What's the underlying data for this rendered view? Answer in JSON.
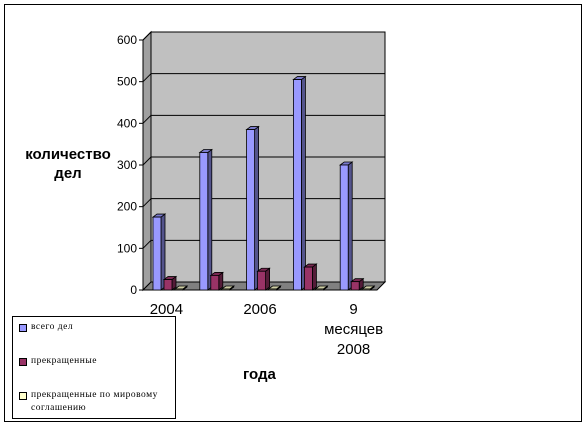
{
  "chart_data": {
    "type": "bar",
    "categories": [
      "2004",
      "",
      "2006",
      "",
      "9 месяцев 2008"
    ],
    "category_lines": [
      [
        "2004"
      ],
      [
        ""
      ],
      [
        "2006"
      ],
      [
        ""
      ],
      [
        "9",
        "месяцев",
        "2008"
      ]
    ],
    "series": [
      {
        "name": "всего дел",
        "values": [
          175,
          330,
          385,
          505,
          300
        ],
        "color": "#9999ff"
      },
      {
        "name": "прекращенные",
        "values": [
          25,
          35,
          45,
          55,
          20
        ],
        "color": "#993366"
      },
      {
        "name": "прекращенные по мировому соглашению",
        "values": [
          2,
          2,
          2,
          2,
          2
        ],
        "color": "#ffffcc"
      }
    ],
    "yticks": [
      0,
      100,
      200,
      300,
      400,
      500,
      600
    ],
    "ylim": [
      0,
      600
    ],
    "ylabel_lines": [
      "количество",
      "дел"
    ],
    "xlabel": "года",
    "wall_color": "#c0c0c0",
    "floor_color": "#808080",
    "grid": true,
    "legend_position": "bottom-left"
  }
}
